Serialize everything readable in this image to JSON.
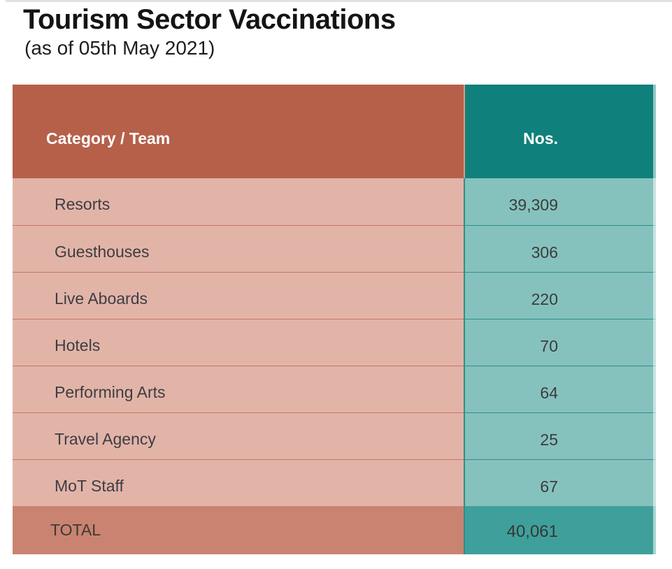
{
  "page": {
    "title": "Tourism Sector Vaccinations",
    "subtitle": "(as of 05th May 2021)"
  },
  "table": {
    "headers": {
      "category": "Category / Team",
      "nos": "Nos."
    },
    "rows": [
      {
        "label": "Resorts",
        "value": "39,309"
      },
      {
        "label": "Guesthouses",
        "value": "306"
      },
      {
        "label": "Live Aboards",
        "value": "220"
      },
      {
        "label": "Hotels",
        "value": "70"
      },
      {
        "label": "Performing Arts",
        "value": "64"
      },
      {
        "label": "Travel Agency",
        "value": "25"
      },
      {
        "label": "MoT Staff",
        "value": "67"
      }
    ],
    "total": {
      "label": "TOTAL",
      "value": "40,061"
    }
  },
  "colors": {
    "header_left": "#b6604a",
    "header_right": "#0f807b",
    "body_left": "#e2b4a8",
    "body_right": "#86c2bd",
    "total_left": "#ca8370",
    "total_right": "#3fa09b"
  },
  "chart_data": {
    "type": "table",
    "title": "Tourism Sector Vaccinations",
    "subtitle": "(as of 05th May 2021)",
    "columns": [
      "Category / Team",
      "Nos."
    ],
    "categories": [
      "Resorts",
      "Guesthouses",
      "Live Aboards",
      "Hotels",
      "Performing Arts",
      "Travel Agency",
      "MoT Staff"
    ],
    "values": [
      39309,
      306,
      220,
      70,
      64,
      25,
      67
    ],
    "total_label": "TOTAL",
    "total_value": 40061
  }
}
